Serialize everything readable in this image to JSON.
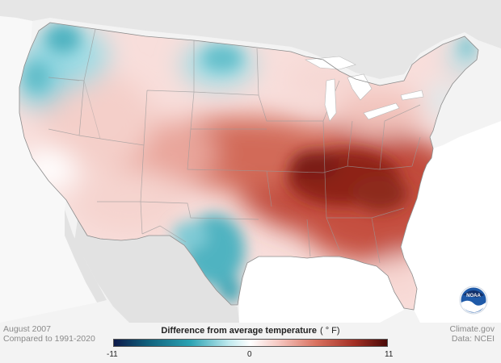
{
  "footer": {
    "date": "August 2007",
    "baseline": "Compared to 1991-2020",
    "source_site": "Climate.gov",
    "source_data": "Data: NCEI"
  },
  "legend": {
    "title": "Difference from average temperature",
    "unit": "( ° F)",
    "min": -11,
    "mid": 0,
    "max": 11,
    "min_label": "-11",
    "mid_label": "0",
    "max_label": "11",
    "colors": [
      "#0e1a4a",
      "#0f5e7a",
      "#2ba3b3",
      "#bfe9ee",
      "#ffffff",
      "#f6c9c3",
      "#d9715f",
      "#a32f24",
      "#4a0a08"
    ]
  },
  "logo": {
    "text": "NOAA"
  },
  "map": {
    "background_color": "#f3f3f3",
    "land_color": "#dcdcdc",
    "ocean_color": "#ffffff"
  }
}
